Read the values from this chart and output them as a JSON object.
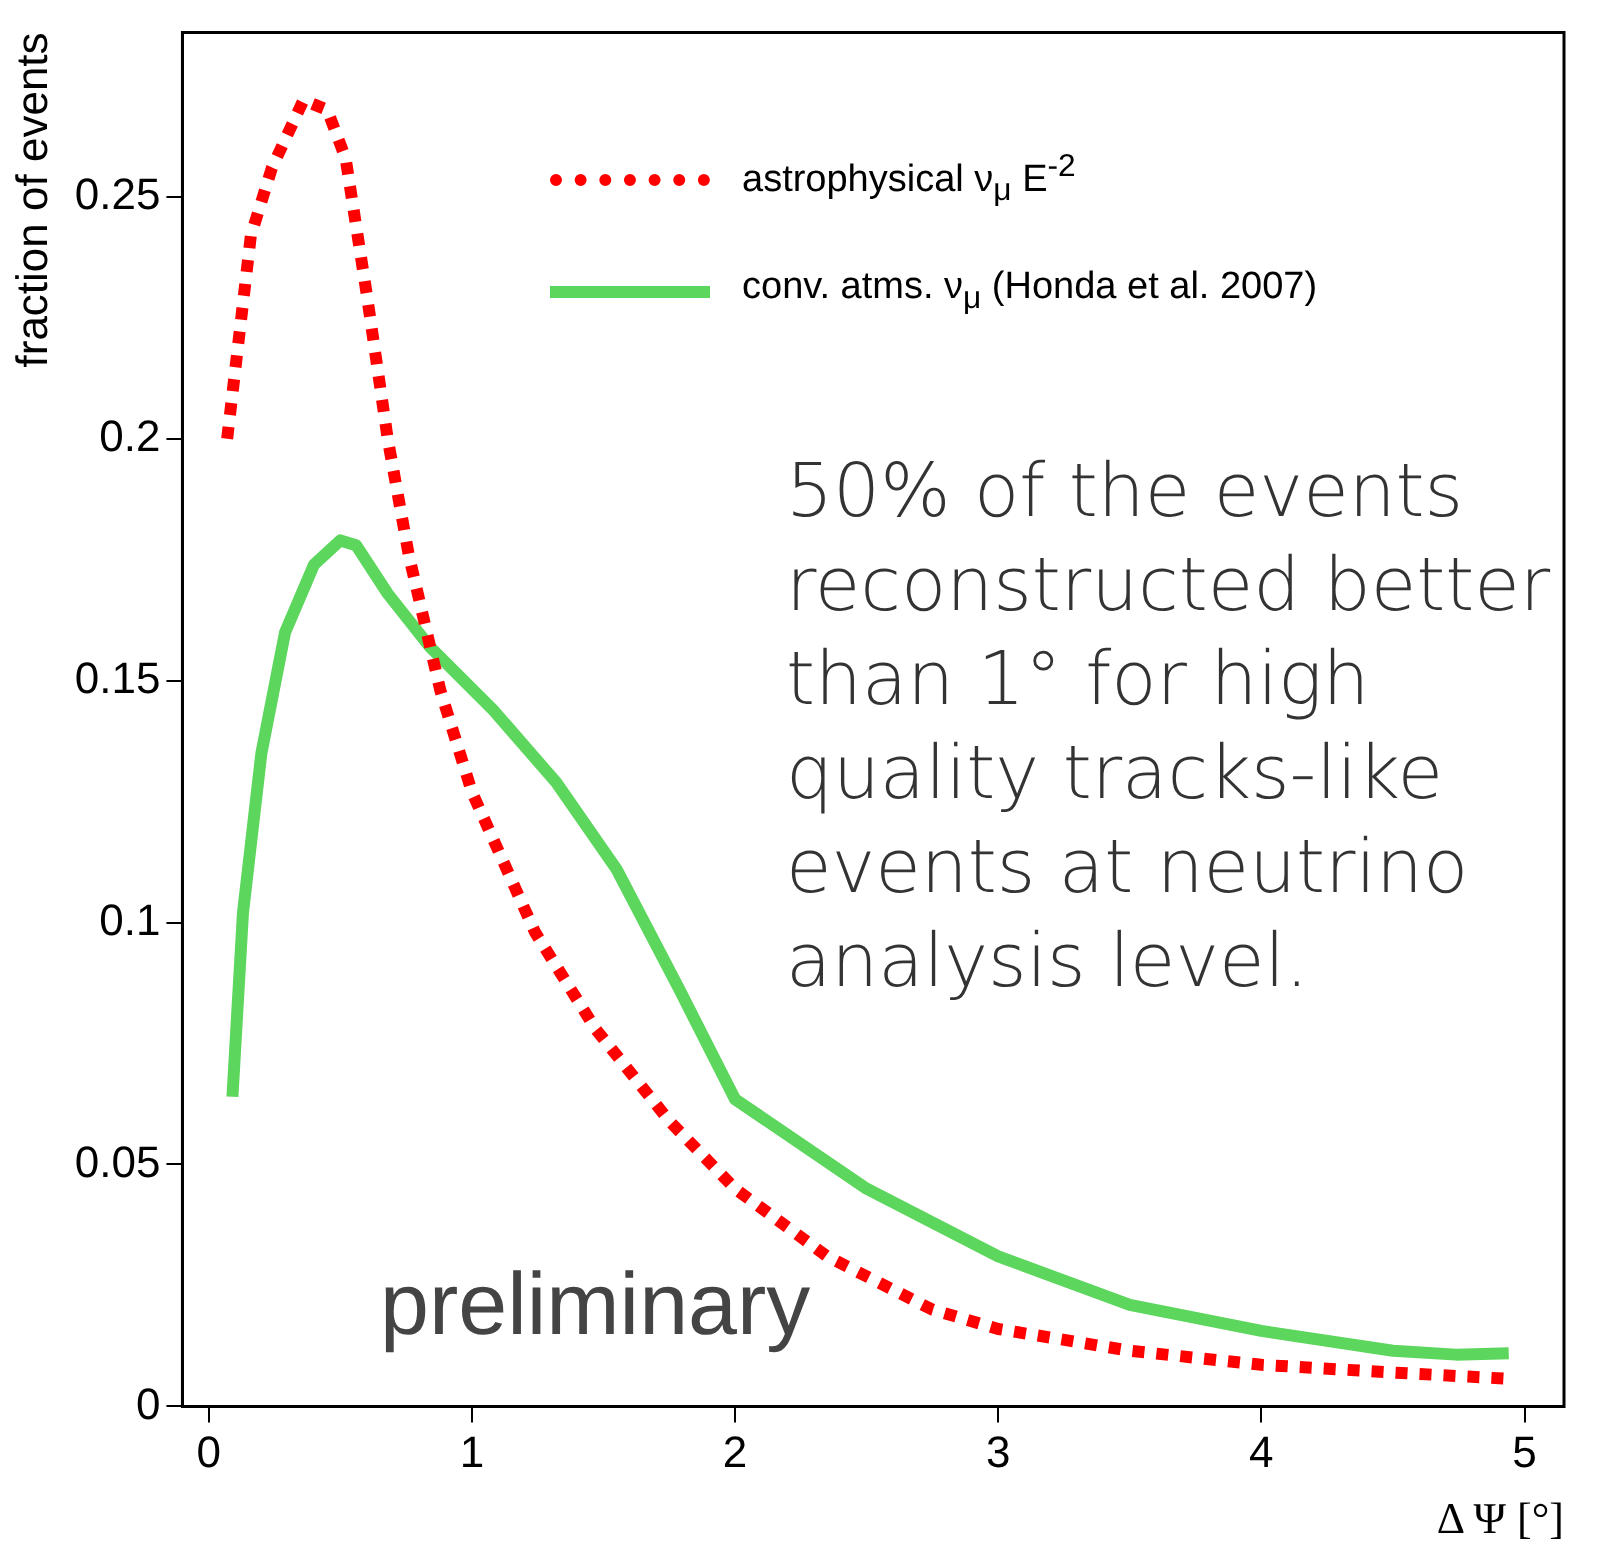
{
  "chart_data": {
    "type": "line",
    "xlabel": "Δ Ψ [°]",
    "ylabel": "fraction of events",
    "xlim": [
      -0.1,
      5.15
    ],
    "xticks": [
      0,
      1,
      2,
      3,
      4,
      5
    ],
    "ylim": [
      0,
      0.284
    ],
    "yticks": [
      0,
      0.05,
      0.1,
      0.15,
      0.2,
      0.25
    ],
    "grid": false,
    "legend": "top right",
    "marker": "none",
    "series": [
      {
        "name": "astrophysical ν$_{μ}$ E$^{-2}$",
        "color": "#ff0000",
        "line_style": "dotted",
        "x": [
          0.07,
          0.16,
          0.24,
          0.36,
          0.45,
          0.52,
          0.6,
          0.68,
          0.76,
          0.88,
          1.0,
          1.24,
          1.47,
          1.75,
          2.0,
          2.35,
          2.75,
          3.0,
          3.5,
          4.0,
          4.5,
          4.94
        ],
        "values": [
          0.2,
          0.242,
          0.256,
          0.27,
          0.268,
          0.258,
          0.23,
          0.2,
          0.176,
          0.148,
          0.127,
          0.098,
          0.078,
          0.059,
          0.045,
          0.031,
          0.02,
          0.016,
          0.0115,
          0.0086,
          0.007,
          0.0057
        ]
      },
      {
        "name": "conv. atms. ν$_{μ}$ (Honda et al. 2007)",
        "color": "#5cd65c",
        "line_style": "solid",
        "x": [
          0.09,
          0.13,
          0.2,
          0.29,
          0.4,
          0.5,
          0.56,
          0.68,
          0.84,
          1.08,
          1.32,
          1.55,
          1.79,
          2.0,
          2.5,
          3.0,
          3.5,
          4.0,
          4.5,
          4.74,
          4.94
        ],
        "values": [
          0.064,
          0.102,
          0.135,
          0.16,
          0.174,
          0.179,
          0.178,
          0.168,
          0.157,
          0.144,
          0.129,
          0.111,
          0.086,
          0.0635,
          0.045,
          0.031,
          0.021,
          0.0156,
          0.0115,
          0.0107,
          0.011
        ]
      }
    ],
    "annotations": [
      "50% of the events reconstructed better than 1° for high quality tracks-like events at neutrino analysis level.",
      "preliminary"
    ]
  }
}
